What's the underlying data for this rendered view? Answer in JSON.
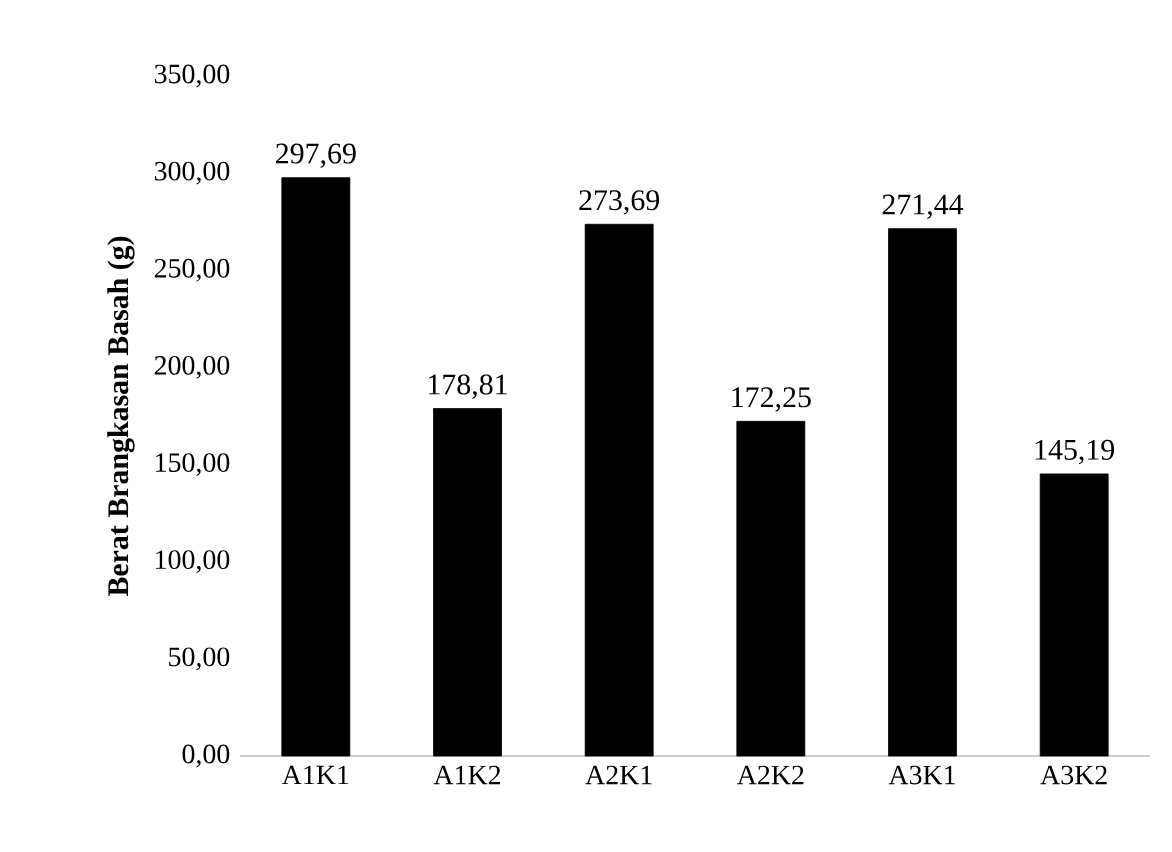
{
  "chart_data": {
    "type": "bar",
    "ylabel": "Berat Brangkasan Basah (g)",
    "categories": [
      "A1K1",
      "A1K2",
      "A2K1",
      "A2K2",
      "A3K1",
      "A3K2"
    ],
    "values": [
      297.69,
      178.81,
      273.69,
      172.25,
      271.44,
      145.19
    ],
    "value_labels": [
      "297,69",
      "178,81",
      "273,69",
      "172,25",
      "271,44",
      "145,19"
    ],
    "color": "#000000",
    "ylim": [
      0,
      350
    ],
    "yticks": [
      {
        "value": 0,
        "label": "0,00"
      },
      {
        "value": 50,
        "label": "50,00"
      },
      {
        "value": 100,
        "label": "100,00"
      },
      {
        "value": 150,
        "label": "150,00"
      },
      {
        "value": 200,
        "label": "200,00"
      },
      {
        "value": 250,
        "label": "250,00"
      },
      {
        "value": 300,
        "label": "300,00"
      },
      {
        "value": 350,
        "label": "350,00"
      }
    ],
    "grid": false
  }
}
